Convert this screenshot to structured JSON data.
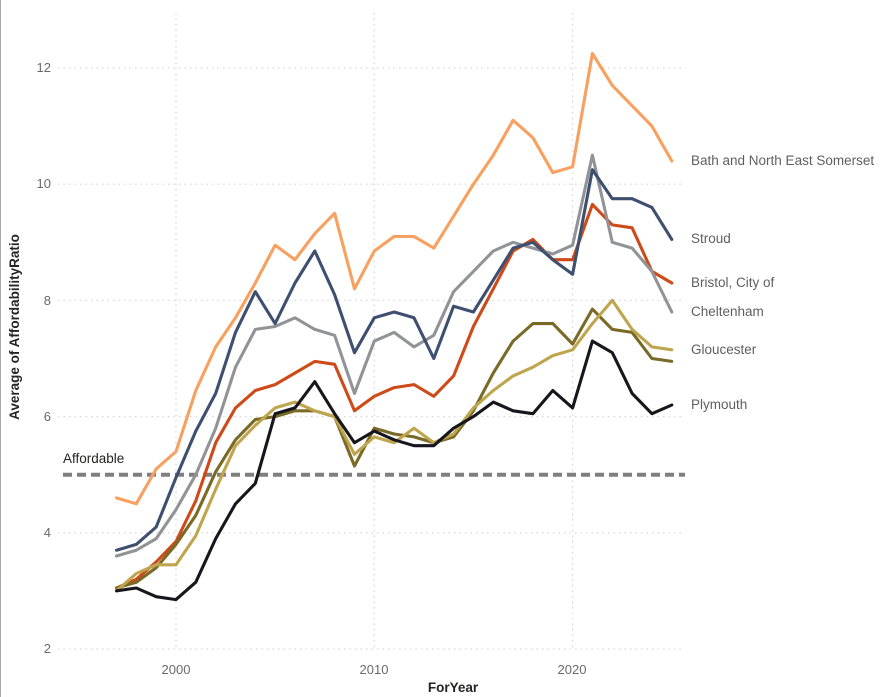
{
  "window": {
    "background": "#FFFFFF",
    "left_border_color": "#A9A9A9"
  },
  "chart_data": {
    "type": "line",
    "xlabel": "ForYear",
    "ylabel": "Average of AffordabilityRatio",
    "grid": "dotted",
    "grid_color": "#D9D9D9",
    "tick_label_color": "#6A6A6A",
    "axis_title_color": "#252423",
    "series_label_color": "#5F5F5F",
    "legend_position": "line-end-labels-right",
    "ylim": [
      2,
      12.6
    ],
    "x_years": [
      1997,
      1998,
      1999,
      2000,
      2001,
      2002,
      2003,
      2004,
      2005,
      2006,
      2007,
      2008,
      2009,
      2010,
      2011,
      2012,
      2013,
      2014,
      2015,
      2016,
      2017,
      2018,
      2019,
      2020,
      2021,
      2022,
      2023,
      2024,
      2025
    ],
    "x_ticks": [
      {
        "value": 2000,
        "label": "2000"
      },
      {
        "value": 2010,
        "label": "2010"
      },
      {
        "value": 2020,
        "label": "2020"
      }
    ],
    "y_ticks": [
      {
        "value": 12,
        "label": "12"
      },
      {
        "value": 10,
        "label": "10"
      },
      {
        "value": 8,
        "label": "8"
      },
      {
        "value": 6,
        "label": "6"
      },
      {
        "value": 4,
        "label": "4"
      },
      {
        "value": 2,
        "label": "2"
      }
    ],
    "reference_line": {
      "value": 5,
      "label": "Affordable",
      "color": "#7F7F7F",
      "style": "dashed"
    },
    "series": [
      {
        "name": "bath-and-north-east-somerset",
        "label": "Bath and North East Somerset",
        "color": "#F8A05F",
        "values": [
          4.6,
          4.5,
          5.1,
          5.4,
          6.45,
          7.2,
          7.7,
          8.3,
          8.95,
          8.7,
          9.15,
          9.5,
          8.2,
          8.85,
          9.1,
          9.1,
          8.9,
          9.45,
          10.0,
          10.5,
          11.1,
          10.8,
          10.2,
          10.3,
          12.25,
          11.7,
          11.35,
          11.0,
          10.4
        ]
      },
      {
        "name": "stroud",
        "label": "Stroud",
        "color": "#3E4F70",
        "values": [
          3.7,
          3.8,
          4.1,
          4.95,
          5.75,
          6.4,
          7.45,
          8.15,
          7.6,
          8.3,
          8.85,
          8.1,
          7.1,
          7.7,
          7.8,
          7.7,
          7.0,
          7.9,
          7.8,
          8.35,
          8.9,
          9.0,
          8.7,
          8.45,
          10.25,
          9.75,
          9.75,
          9.6,
          9.05
        ]
      },
      {
        "name": "bristol-city-of",
        "label": "Bristol, City of",
        "color": "#CE4A19",
        "values": [
          3.05,
          3.2,
          3.5,
          3.85,
          4.55,
          5.55,
          6.15,
          6.45,
          6.55,
          6.75,
          6.95,
          6.9,
          6.1,
          6.35,
          6.5,
          6.55,
          6.35,
          6.7,
          7.55,
          8.2,
          8.85,
          9.05,
          8.7,
          8.7,
          9.65,
          9.3,
          9.25,
          8.5,
          8.3
        ]
      },
      {
        "name": "cheltenham",
        "label": "Cheltenham",
        "color": "#919396",
        "values": [
          3.6,
          3.7,
          3.9,
          4.4,
          5.0,
          5.8,
          6.85,
          7.5,
          7.55,
          7.7,
          7.5,
          7.4,
          6.4,
          7.3,
          7.45,
          7.2,
          7.4,
          8.15,
          8.5,
          8.85,
          9.0,
          8.9,
          8.8,
          8.95,
          10.5,
          9.0,
          8.9,
          8.5,
          7.8
        ]
      },
      {
        "name": "gloucester",
        "label": "Gloucester",
        "color": "#BEA54E",
        "values": [
          3.0,
          3.3,
          3.45,
          3.45,
          3.95,
          4.75,
          5.5,
          5.85,
          6.15,
          6.25,
          6.1,
          6.0,
          5.35,
          5.65,
          5.55,
          5.8,
          5.55,
          5.7,
          6.15,
          6.45,
          6.7,
          6.85,
          7.05,
          7.15,
          7.6,
          8.0,
          7.5,
          7.2,
          7.15
        ]
      },
      {
        "name": "unlabeled-olive-series",
        "label": "",
        "color": "#796A26",
        "values": [
          3.05,
          3.15,
          3.4,
          3.8,
          4.3,
          5.05,
          5.6,
          5.95,
          6.0,
          6.1,
          6.1,
          6.0,
          5.15,
          5.8,
          5.7,
          5.65,
          5.55,
          5.65,
          6.1,
          6.75,
          7.3,
          7.6,
          7.6,
          7.25,
          7.85,
          7.5,
          7.45,
          7.0,
          6.95
        ]
      },
      {
        "name": "plymouth",
        "label": "Plymouth",
        "color": "#16161C",
        "values": [
          3.0,
          3.05,
          2.9,
          2.85,
          3.15,
          3.9,
          4.5,
          4.85,
          6.05,
          6.15,
          6.6,
          6.05,
          5.55,
          5.75,
          5.6,
          5.5,
          5.5,
          5.8,
          6.0,
          6.25,
          6.1,
          6.05,
          6.45,
          6.15,
          7.3,
          7.1,
          6.4,
          6.05,
          6.2
        ]
      }
    ]
  }
}
